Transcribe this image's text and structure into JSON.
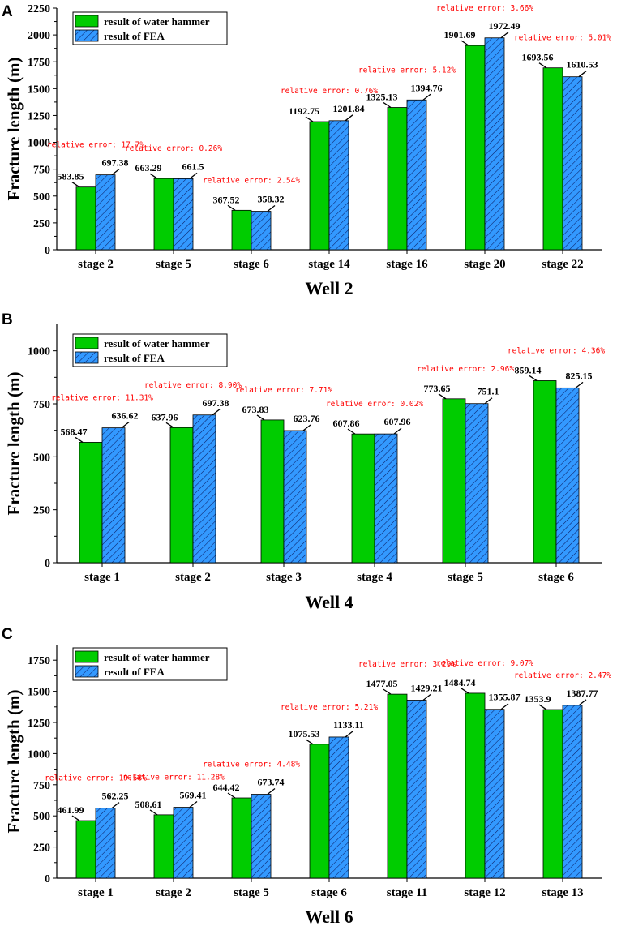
{
  "colors": {
    "water_hammer": "#00cc00",
    "fea": "#3399ff",
    "error_text": "#ff0000",
    "axis": "#000000"
  },
  "legend": {
    "water_hammer": "result of water hammer",
    "fea": "result of FEA"
  },
  "chart_data": [
    {
      "panel": "A",
      "type": "bar",
      "title": "",
      "xlabel": "Well 2",
      "ylabel": "Fracture length (m)",
      "ylim": [
        0,
        2250
      ],
      "yticks": [
        0,
        250,
        500,
        750,
        1000,
        1250,
        1500,
        1750,
        2000,
        2250
      ],
      "categories": [
        "stage 2",
        "stage 5",
        "stage 6",
        "stage 14",
        "stage 16",
        "stage 20",
        "stage 22"
      ],
      "series": [
        {
          "name": "result of water hammer",
          "values": [
            583.85,
            663.29,
            367.52,
            1192.75,
            1325.13,
            1901.69,
            1693.56
          ]
        },
        {
          "name": "result of FEA",
          "values": [
            697.38,
            661.5,
            358.32,
            1201.84,
            1394.76,
            1972.49,
            1610.53
          ]
        }
      ],
      "annotations": [
        "relative error: 17.7%",
        "relative error: 0.26%",
        "relative error: 2.54%",
        "relative error: 0.76%",
        "relative error: 5.12%",
        "relative error: 3.66%",
        "relative error: 5.01%"
      ]
    },
    {
      "panel": "B",
      "type": "bar",
      "title": "",
      "xlabel": "Well 4",
      "ylabel": "Fracture length (m)",
      "ylim": [
        0,
        1125
      ],
      "yticks": [
        0,
        250,
        500,
        750,
        1000
      ],
      "categories": [
        "stage 1",
        "stage 2",
        "stage 3",
        "stage 4",
        "stage 5",
        "stage 6"
      ],
      "series": [
        {
          "name": "result of water hammer",
          "values": [
            568.47,
            637.96,
            673.83,
            607.86,
            773.65,
            859.14
          ]
        },
        {
          "name": "result of FEA",
          "values": [
            636.62,
            697.38,
            623.76,
            607.96,
            751.1,
            825.15
          ]
        }
      ],
      "annotations": [
        "relative error: 11.31%",
        "relative error: 8.90%",
        "relative error: 7.71%",
        "relative error: 0.02%",
        "relative error: 2.96%",
        "relative error: 4.36%"
      ]
    },
    {
      "panel": "C",
      "type": "bar",
      "title": "",
      "xlabel": "Well 6",
      "ylabel": "Fracture length (m)",
      "ylim": [
        0,
        1875
      ],
      "yticks": [
        0,
        250,
        500,
        750,
        1000,
        1250,
        1500,
        1750
      ],
      "categories": [
        "stage 1",
        "stage 2",
        "stage 5",
        "stage 6",
        "stage 11",
        "stage 12",
        "stage 13"
      ],
      "series": [
        {
          "name": "result of water hammer",
          "values": [
            461.99,
            508.61,
            644.42,
            1075.53,
            1477.05,
            1484.74,
            1353.9
          ]
        },
        {
          "name": "result of FEA",
          "values": [
            562.25,
            569.41,
            673.74,
            1133.11,
            1429.21,
            1355.87,
            1387.77
          ]
        }
      ],
      "annotations": [
        "relative error: 19.58%",
        "relative error: 11.28%",
        "relative error: 4.48%",
        "relative error: 5.21%",
        "relative error: 3.29%",
        "relative error: 9.07%",
        "relative error: 2.47%"
      ]
    }
  ]
}
